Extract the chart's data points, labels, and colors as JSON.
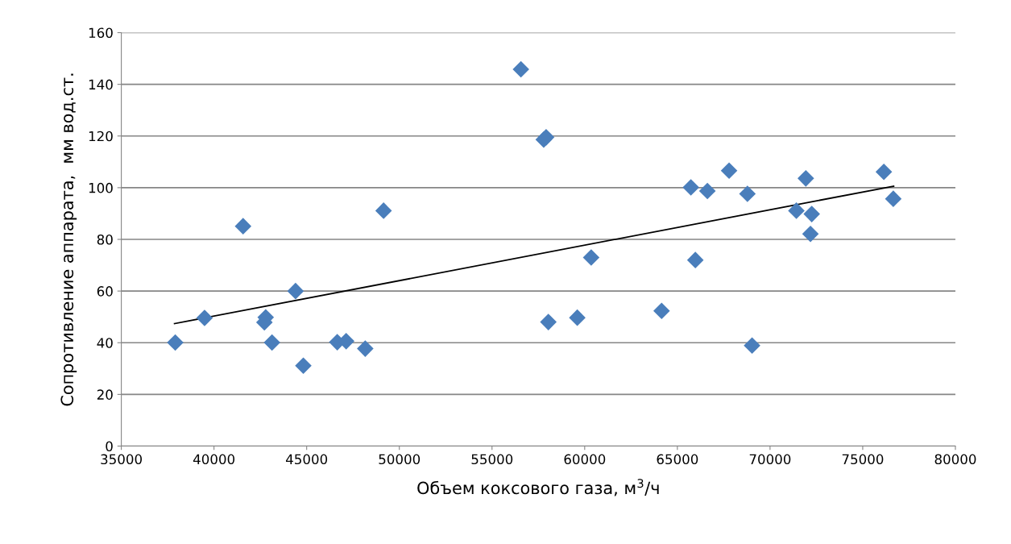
{
  "chart_data": {
    "type": "scatter",
    "xlabel": "Объем коксового газа, м$^{3}$/ч",
    "ylabel": "Сопротивление аппарата,  мм вод.ст.",
    "xlim": [
      35000,
      80000
    ],
    "xticks": [
      35000,
      40000,
      45000,
      50000,
      55000,
      60000,
      65000,
      70000,
      75000,
      80000
    ],
    "ylim": [
      0,
      160
    ],
    "yticks": [
      0,
      20,
      40,
      60,
      80,
      100,
      120,
      140,
      160
    ],
    "grid": "y",
    "marker": "diamond",
    "series": [
      {
        "color": "#4a7ebb",
        "x": [
          37910,
          39490,
          41570,
          42790,
          42720,
          43130,
          44400,
          44820,
          46650,
          47130,
          48160,
          49150,
          56560,
          57790,
          57920,
          58040,
          59600,
          60350,
          64150,
          65730,
          65970,
          66620,
          67790,
          68780,
          69030,
          71420,
          71930,
          72250,
          72180,
          76140,
          76650
        ],
        "values": [
          40.1,
          49.6,
          85.1,
          49.8,
          47.9,
          40.1,
          60.0,
          31.1,
          40.2,
          40.6,
          37.7,
          91.1,
          145.8,
          118.6,
          119.5,
          48.0,
          49.7,
          73.0,
          52.3,
          100.1,
          72.0,
          98.7,
          106.6,
          97.6,
          38.9,
          91.1,
          103.6,
          89.8,
          82.1,
          106.1,
          95.7
        ]
      },
      {
        "type": "line",
        "color": "#000000",
        "marker": "none",
        "line_style": "solid",
        "x": [
          37870,
          76670
        ],
        "values": [
          47.4,
          100.6
        ]
      }
    ]
  }
}
